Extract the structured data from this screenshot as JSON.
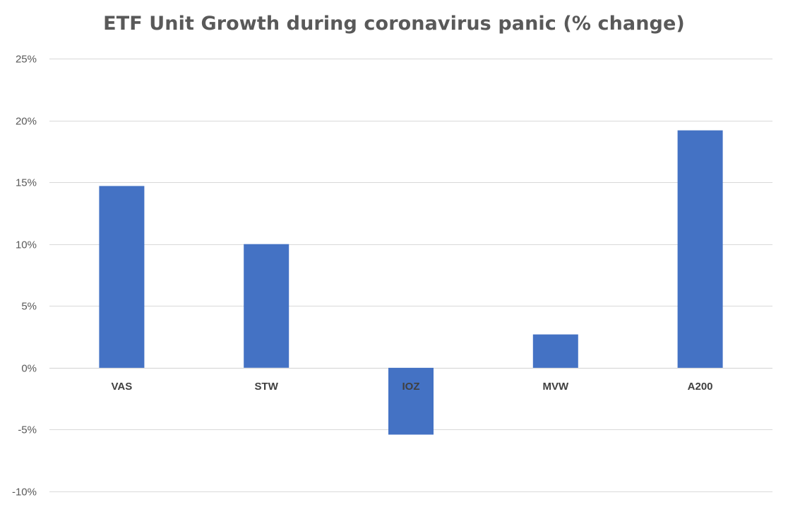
{
  "chart_data": {
    "type": "bar",
    "title": "ETF Unit Growth during coronavirus panic (% change)",
    "xlabel": "",
    "ylabel": "",
    "categories": [
      "VAS",
      "STW",
      "IOZ",
      "MVW",
      "A200"
    ],
    "series": [
      {
        "values": [
          14.7,
          10.0,
          -5.4,
          2.7,
          19.2
        ]
      }
    ],
    "ylim": [
      -10,
      25
    ],
    "yticks": [
      25,
      20,
      15,
      10,
      5,
      0,
      -5,
      -10
    ],
    "ytick_labels": [
      "25%",
      "20%",
      "15%",
      "10%",
      "5%",
      "0%",
      "-5%",
      "-10%"
    ],
    "grid": true,
    "legend": "none",
    "bar_color": "#4472c4",
    "grid_color": "#d9d9d9"
  }
}
